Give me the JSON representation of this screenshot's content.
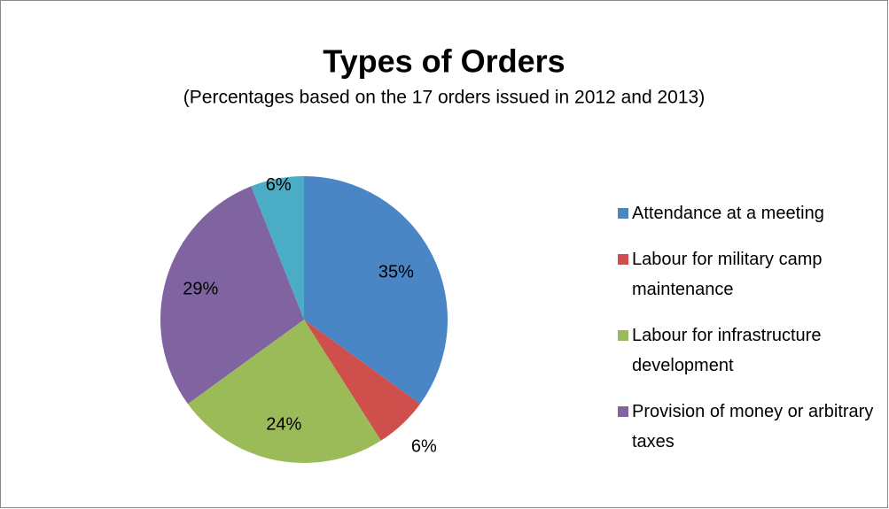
{
  "chart_data": {
    "type": "pie",
    "title": "Types of Orders",
    "subtitle": "(Percentages based on the 17 orders issued in 2012 and 2013)",
    "categories": [
      "Attendance at a meeting",
      "Labour for military camp maintenance",
      "Labour for infrastructure development",
      "Provision of money or arbitrary taxes",
      null
    ],
    "values": [
      35,
      6,
      24,
      29,
      6
    ],
    "value_labels": [
      "35%",
      "6%",
      "24%",
      "29%",
      "6%"
    ],
    "colors": [
      "#4a85c6",
      "#cf4f4c",
      "#9bbb59",
      "#8064a2",
      "#4bacc6"
    ],
    "legend": "right"
  }
}
